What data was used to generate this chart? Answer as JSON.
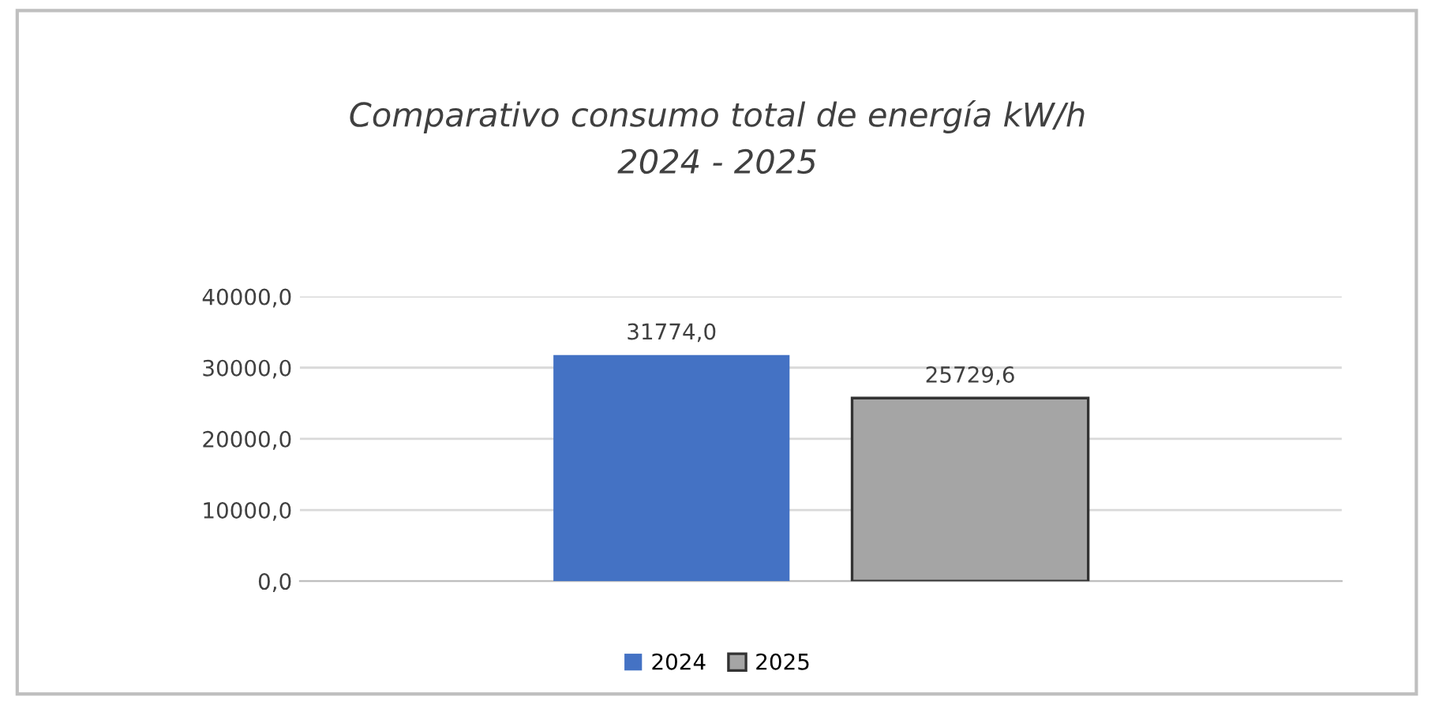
{
  "chart_data": {
    "type": "bar",
    "title": "Comparativo consumo total de energía kW/h\n2024 - 2025",
    "categories": [
      null
    ],
    "series": [
      {
        "name": "2024",
        "color": "#4472c4",
        "values": [
          31774.0
        ],
        "value_labels": [
          "31774,0"
        ]
      },
      {
        "name": "2025",
        "color": "#a5a5a5",
        "values": [
          25729.6
        ],
        "value_labels": [
          "25729,6"
        ]
      }
    ],
    "ylim": [
      0,
      40000
    ],
    "yticks": [
      {
        "value": 0,
        "label": "0,0"
      },
      {
        "value": 10000,
        "label": "10000,0"
      },
      {
        "value": 20000,
        "label": "20000,0"
      },
      {
        "value": 30000,
        "label": "30000,0"
      },
      {
        "value": 40000,
        "label": "40000,0"
      }
    ],
    "grid": "y",
    "legend": "bottom"
  }
}
